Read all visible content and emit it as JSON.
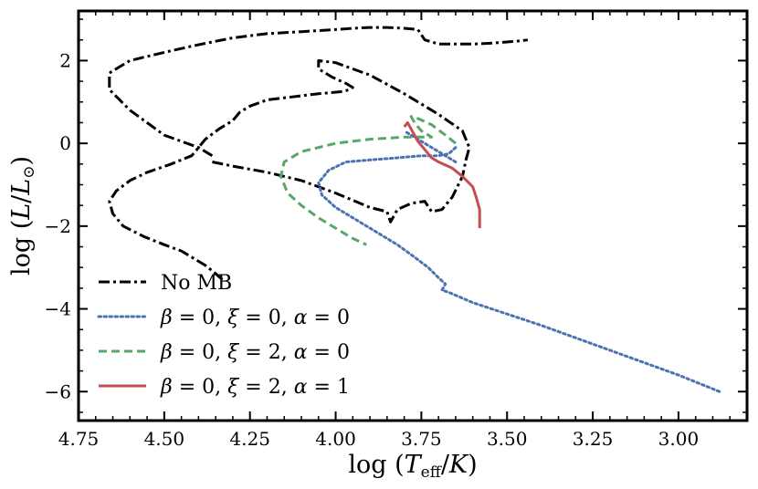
{
  "chart_data": {
    "type": "line",
    "xlabel": "log (T_eff/K)",
    "ylabel": "log (L/L⊙)",
    "xlim": [
      4.75,
      2.8
    ],
    "ylim": [
      -6.7,
      3.2
    ],
    "x_inverted": true,
    "xticks": [
      4.75,
      4.5,
      4.25,
      4.0,
      3.75,
      3.5,
      3.25,
      3.0
    ],
    "xtick_labels": [
      "4.75",
      "4.50",
      "4.25",
      "4.00",
      "3.75",
      "3.50",
      "3.25",
      "3.00"
    ],
    "yticks": [
      2,
      0,
      -2,
      -4,
      -6
    ],
    "ytick_labels": [
      "2",
      "0",
      "−2",
      "−4",
      "−6"
    ],
    "grid": false,
    "legend_position": "bottom-left",
    "series": [
      {
        "name": "No MB",
        "label_parts": {
          "text": "No MB"
        },
        "color": "#000000",
        "style": "dashdot",
        "x": [
          4.36,
          4.3,
          4.2,
          4.1,
          4.0,
          3.9,
          3.85,
          3.84,
          3.82,
          3.78,
          3.74,
          3.72,
          3.69,
          3.66,
          3.63,
          3.62,
          3.61,
          3.63,
          3.7,
          3.8,
          3.9,
          4.0,
          4.05,
          4.05,
          4.01,
          3.97,
          3.95,
          3.96,
          3.98,
          4.05,
          4.1,
          4.2,
          4.25,
          4.28,
          4.3,
          4.34,
          4.38,
          4.4,
          4.42,
          4.48,
          4.55,
          4.6,
          4.64,
          4.66,
          4.65,
          4.62,
          4.56,
          4.5,
          4.45,
          4.42,
          4.38,
          4.35,
          4.33
        ],
        "y": [
          -0.45,
          -0.55,
          -0.7,
          -0.9,
          -1.2,
          -1.55,
          -1.65,
          -1.9,
          -1.6,
          -1.45,
          -1.4,
          -1.65,
          -1.6,
          -1.3,
          -0.8,
          -0.4,
          -0.1,
          0.3,
          0.7,
          1.2,
          1.65,
          1.95,
          2.0,
          1.8,
          1.6,
          1.45,
          1.35,
          1.3,
          1.25,
          1.2,
          1.15,
          1.05,
          0.9,
          0.75,
          0.55,
          0.35,
          0.1,
          -0.1,
          -0.3,
          -0.5,
          -0.7,
          -0.9,
          -1.15,
          -1.4,
          -1.7,
          -2.0,
          -2.25,
          -2.45,
          -2.6,
          -2.75,
          -2.95,
          -3.15,
          -3.3
        ],
        "x2": [
          4.36,
          4.4,
          4.5,
          4.6,
          4.66,
          4.66,
          4.6,
          4.5,
          4.42,
          4.36,
          4.3,
          4.25,
          4.2,
          4.1,
          4.0,
          3.95,
          3.9,
          3.85,
          3.8,
          3.76,
          3.74,
          3.7,
          3.6,
          3.55,
          3.5,
          3.46,
          3.44
        ],
        "y2": [
          -0.3,
          -0.1,
          0.2,
          0.8,
          1.3,
          1.7,
          2.0,
          2.2,
          2.35,
          2.45,
          2.55,
          2.6,
          2.65,
          2.7,
          2.75,
          2.78,
          2.8,
          2.8,
          2.78,
          2.75,
          2.5,
          2.4,
          2.4,
          2.42,
          2.45,
          2.48,
          2.5
        ]
      },
      {
        "name": "β = 0, ξ = 0, α = 0",
        "label_parts": {
          "beta": "β",
          "xi": "ξ",
          "alpha": "α",
          "eq": "=",
          "sep": ",",
          "b_val": "0",
          "x_val": "0",
          "a_val": "0"
        },
        "color": "#4c72b0",
        "style": "dotted",
        "x": [
          3.65,
          3.67,
          3.7,
          3.75,
          3.82,
          3.9,
          3.97,
          4.02,
          4.05,
          4.04,
          4.0,
          3.94,
          3.88,
          3.82,
          3.77,
          3.73,
          3.7,
          3.68,
          3.69,
          3.67,
          3.6,
          3.4,
          3.2,
          3.0,
          2.88
        ],
        "y": [
          -0.1,
          -0.25,
          -0.3,
          -0.3,
          -0.35,
          -0.4,
          -0.45,
          -0.65,
          -0.95,
          -1.25,
          -1.55,
          -1.85,
          -2.15,
          -2.45,
          -2.75,
          -3.0,
          -3.25,
          -3.4,
          -3.55,
          -3.6,
          -3.85,
          -4.4,
          -5.0,
          -5.6,
          -6.0
        ],
        "x2": [
          3.65,
          3.7,
          3.76,
          3.8
        ],
        "y2": [
          -0.45,
          -0.2,
          0.1,
          0.3
        ]
      },
      {
        "name": "β = 0, ξ = 2, α = 0",
        "label_parts": {
          "beta": "β",
          "xi": "ξ",
          "alpha": "α",
          "eq": "=",
          "sep": ",",
          "b_val": "0",
          "x_val": "2",
          "a_val": "0"
        },
        "color": "#55a868",
        "style": "dashed",
        "x": [
          3.65,
          3.68,
          3.72,
          3.76,
          3.78,
          3.77,
          3.75,
          3.72,
          3.8,
          3.9,
          4.0,
          4.1,
          4.15,
          4.16,
          4.14,
          4.1,
          4.05,
          4.0,
          3.95,
          3.91
        ],
        "y": [
          0.0,
          0.2,
          0.45,
          0.6,
          0.65,
          0.5,
          0.3,
          0.15,
          0.15,
          0.1,
          0.0,
          -0.2,
          -0.45,
          -0.8,
          -1.2,
          -1.5,
          -1.8,
          -2.05,
          -2.3,
          -2.45
        ]
      },
      {
        "name": "β = 0, ξ = 2, α = 1",
        "label_parts": {
          "beta": "β",
          "xi": "ξ",
          "alpha": "α",
          "eq": "=",
          "sep": ",",
          "b_val": "0",
          "x_val": "2",
          "a_val": "1"
        },
        "color": "#c44e52",
        "style": "solid",
        "x": [
          3.8,
          3.79,
          3.78,
          3.76,
          3.74,
          3.72,
          3.7,
          3.66,
          3.63,
          3.6,
          3.59,
          3.58,
          3.58
        ],
        "y": [
          0.4,
          0.5,
          0.35,
          0.05,
          -0.15,
          -0.35,
          -0.45,
          -0.6,
          -0.8,
          -1.05,
          -1.3,
          -1.6,
          -2.05
        ]
      }
    ]
  }
}
